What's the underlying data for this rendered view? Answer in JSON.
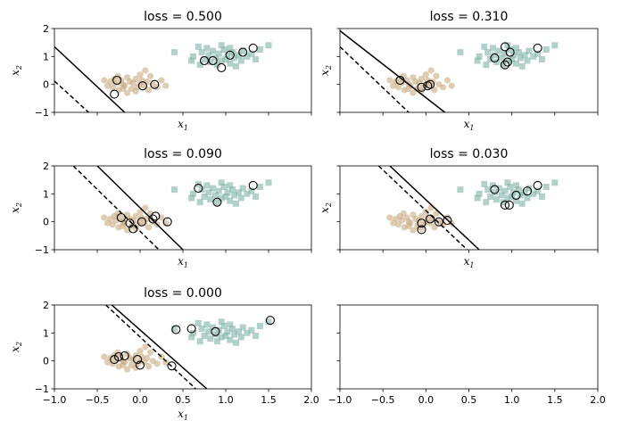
{
  "figure": {
    "background": "#ffffff"
  },
  "style": {
    "class0_color": "#c8aa80",
    "class1_color": "#7fb2a9",
    "support_edge_color": "#000000",
    "line_color": "#000000"
  },
  "xaxis": {
    "label_base": "x",
    "label_sub": "1",
    "lim": [
      -1.0,
      2.0
    ],
    "ticks": [
      -1.0,
      -0.5,
      0.0,
      0.5,
      1.0,
      1.5,
      2.0
    ],
    "tick_labels": [
      "−1.0",
      "−0.5",
      "0.0",
      "0.5",
      "1.0",
      "1.5",
      "2.0"
    ]
  },
  "yaxis": {
    "label_base": "x",
    "label_sub": "2",
    "lim": [
      -1,
      2
    ],
    "ticks": [
      -1,
      0,
      1,
      2
    ],
    "tick_labels": [
      "−1",
      "0",
      "1",
      "2"
    ]
  },
  "class0_points": [
    [
      -0.35,
      0.1
    ],
    [
      -0.32,
      -0.1
    ],
    [
      -0.3,
      0.2
    ],
    [
      -0.28,
      0.05
    ],
    [
      -0.25,
      -0.2
    ],
    [
      -0.22,
      0.15
    ],
    [
      -0.2,
      0.0
    ],
    [
      -0.18,
      -0.05
    ],
    [
      -0.15,
      0.25
    ],
    [
      -0.12,
      0.1
    ],
    [
      -0.1,
      -0.15
    ],
    [
      -0.08,
      0.05
    ],
    [
      -0.05,
      0.2
    ],
    [
      -0.03,
      -0.1
    ],
    [
      0.0,
      0.0
    ],
    [
      0.02,
      0.15
    ],
    [
      0.05,
      -0.05
    ],
    [
      0.08,
      0.1
    ],
    [
      0.1,
      -0.2
    ],
    [
      0.12,
      0.3
    ],
    [
      -0.38,
      -0.05
    ],
    [
      -0.15,
      -0.3
    ],
    [
      0.15,
      0.0
    ],
    [
      0.2,
      -0.1
    ],
    [
      -0.26,
      0.3
    ],
    [
      0.0,
      0.35
    ],
    [
      -0.05,
      -0.25
    ],
    [
      0.25,
      0.15
    ],
    [
      0.3,
      -0.05
    ],
    [
      -0.42,
      0.15
    ],
    [
      0.06,
      0.5
    ],
    [
      -0.2,
      -0.15
    ]
  ],
  "class1_points": [
    [
      0.6,
      0.85
    ],
    [
      0.62,
      1.0
    ],
    [
      0.7,
      0.7
    ],
    [
      0.72,
      1.15
    ],
    [
      0.75,
      0.9
    ],
    [
      0.8,
      1.05
    ],
    [
      0.82,
      0.8
    ],
    [
      0.85,
      1.2
    ],
    [
      0.88,
      0.95
    ],
    [
      0.9,
      0.7
    ],
    [
      0.92,
      1.1
    ],
    [
      0.95,
      0.85
    ],
    [
      0.98,
      1.25
    ],
    [
      1.0,
      0.9
    ],
    [
      1.02,
      1.05
    ],
    [
      1.05,
      0.75
    ],
    [
      1.08,
      1.15
    ],
    [
      1.1,
      0.95
    ],
    [
      1.12,
      0.65
    ],
    [
      1.15,
      1.05
    ],
    [
      1.18,
      0.85
    ],
    [
      1.2,
      1.2
    ],
    [
      1.25,
      1.0
    ],
    [
      1.3,
      1.1
    ],
    [
      1.35,
      0.9
    ],
    [
      0.68,
      1.35
    ],
    [
      0.78,
      1.3
    ],
    [
      1.4,
      1.25
    ],
    [
      1.5,
      1.4
    ],
    [
      0.4,
      1.15
    ],
    [
      0.95,
      1.4
    ],
    [
      1.05,
      1.3
    ]
  ],
  "chart_data": [
    {
      "type": "scatter",
      "title": "loss = 0.500",
      "xlim": [
        -1.0,
        2.0
      ],
      "ylim": [
        -1,
        2
      ],
      "xlabel": "x₁",
      "ylabel": "x₂",
      "solid_line": [
        [
          -1.0,
          1.35
        ],
        [
          -0.18,
          -1.0
        ]
      ],
      "dashed_line": [
        [
          -1.0,
          0.12
        ],
        [
          -0.6,
          -1.0
        ]
      ],
      "support_points": [
        [
          -0.27,
          0.15
        ],
        [
          -0.3,
          -0.35
        ],
        [
          0.03,
          -0.05
        ],
        [
          0.17,
          0.0
        ],
        [
          0.75,
          0.85
        ],
        [
          0.85,
          0.85
        ],
        [
          0.95,
          0.6
        ],
        [
          1.05,
          1.05
        ],
        [
          1.2,
          1.15
        ],
        [
          1.32,
          1.3
        ]
      ]
    },
    {
      "type": "scatter",
      "title": "loss = 0.310",
      "xlim": [
        -1.0,
        2.0
      ],
      "ylim": [
        -1,
        2
      ],
      "xlabel": "x₁",
      "ylabel": "x₂",
      "solid_line": [
        [
          -1.0,
          1.92
        ],
        [
          0.22,
          -1.0
        ]
      ],
      "dashed_line": [
        [
          -1.0,
          1.35
        ],
        [
          -0.2,
          -1.0
        ]
      ],
      "support_points": [
        [
          -0.3,
          0.15
        ],
        [
          -0.05,
          -0.1
        ],
        [
          0.02,
          -0.05
        ],
        [
          0.05,
          0.0
        ],
        [
          0.8,
          0.95
        ],
        [
          0.92,
          1.35
        ],
        [
          0.92,
          0.7
        ],
        [
          0.95,
          0.8
        ],
        [
          0.98,
          1.15
        ],
        [
          1.3,
          1.3
        ]
      ]
    },
    {
      "type": "scatter",
      "title": "loss = 0.090",
      "xlim": [
        -1.0,
        2.0
      ],
      "ylim": [
        -1,
        2
      ],
      "xlabel": "x₁",
      "ylabel": "x₂",
      "solid_line": [
        [
          -0.5,
          2.0
        ],
        [
          0.5,
          -1.0
        ]
      ],
      "dashed_line": [
        [
          -0.78,
          2.0
        ],
        [
          0.22,
          -1.0
        ]
      ],
      "support_points": [
        [
          -0.22,
          0.15
        ],
        [
          -0.12,
          -0.05
        ],
        [
          -0.08,
          -0.25
        ],
        [
          0.02,
          0.0
        ],
        [
          0.15,
          0.1
        ],
        [
          0.18,
          0.2
        ],
        [
          0.32,
          0.0
        ],
        [
          0.68,
          1.2
        ],
        [
          0.9,
          0.7
        ],
        [
          1.32,
          1.3
        ]
      ]
    },
    {
      "type": "scatter",
      "title": "loss = 0.030",
      "xlim": [
        -1.0,
        2.0
      ],
      "ylim": [
        -1,
        2
      ],
      "xlabel": "x₁",
      "ylabel": "x₂",
      "solid_line": [
        [
          -0.42,
          2.0
        ],
        [
          0.62,
          -1.0
        ]
      ],
      "dashed_line": [
        [
          -0.55,
          2.0
        ],
        [
          0.48,
          -1.0
        ]
      ],
      "support_points": [
        [
          -0.05,
          -0.05
        ],
        [
          -0.05,
          -0.28
        ],
        [
          0.05,
          0.1
        ],
        [
          0.15,
          0.0
        ],
        [
          0.25,
          0.05
        ],
        [
          0.8,
          1.15
        ],
        [
          0.92,
          0.6
        ],
        [
          0.97,
          0.6
        ],
        [
          1.05,
          0.95
        ],
        [
          1.18,
          1.1
        ],
        [
          1.3,
          1.3
        ]
      ]
    },
    {
      "type": "scatter",
      "title": "loss = 0.000",
      "xlim": [
        -1.0,
        2.0
      ],
      "ylim": [
        -1,
        2
      ],
      "xlabel": "x₁",
      "ylabel": "x₂",
      "xticklabels": [
        "−1.0",
        "−0.5",
        "0.0",
        "0.5",
        "1.0",
        "1.5",
        "2.0"
      ],
      "solid_line": [
        [
          -0.33,
          2.0
        ],
        [
          0.78,
          -1.0
        ]
      ],
      "dashed_line": [
        [
          -0.4,
          2.0
        ],
        [
          0.65,
          -1.0
        ]
      ],
      "support_points": [
        [
          -0.3,
          0.05
        ],
        [
          -0.25,
          0.15
        ],
        [
          -0.18,
          0.18
        ],
        [
          -0.03,
          0.05
        ],
        [
          0.0,
          -0.15
        ],
        [
          0.37,
          -0.18
        ],
        [
          0.42,
          1.12
        ],
        [
          0.6,
          1.15
        ],
        [
          0.88,
          1.05
        ],
        [
          1.52,
          1.45
        ]
      ]
    },
    {
      "type": "scatter",
      "title": "",
      "xlim": [
        -1.0,
        2.0
      ],
      "ylim": [
        -1,
        2
      ],
      "xticklabels": [
        "−1.0",
        "−0.5",
        "0.0",
        "0.5",
        "1.0",
        "1.5",
        "2.0"
      ],
      "empty": true
    }
  ]
}
